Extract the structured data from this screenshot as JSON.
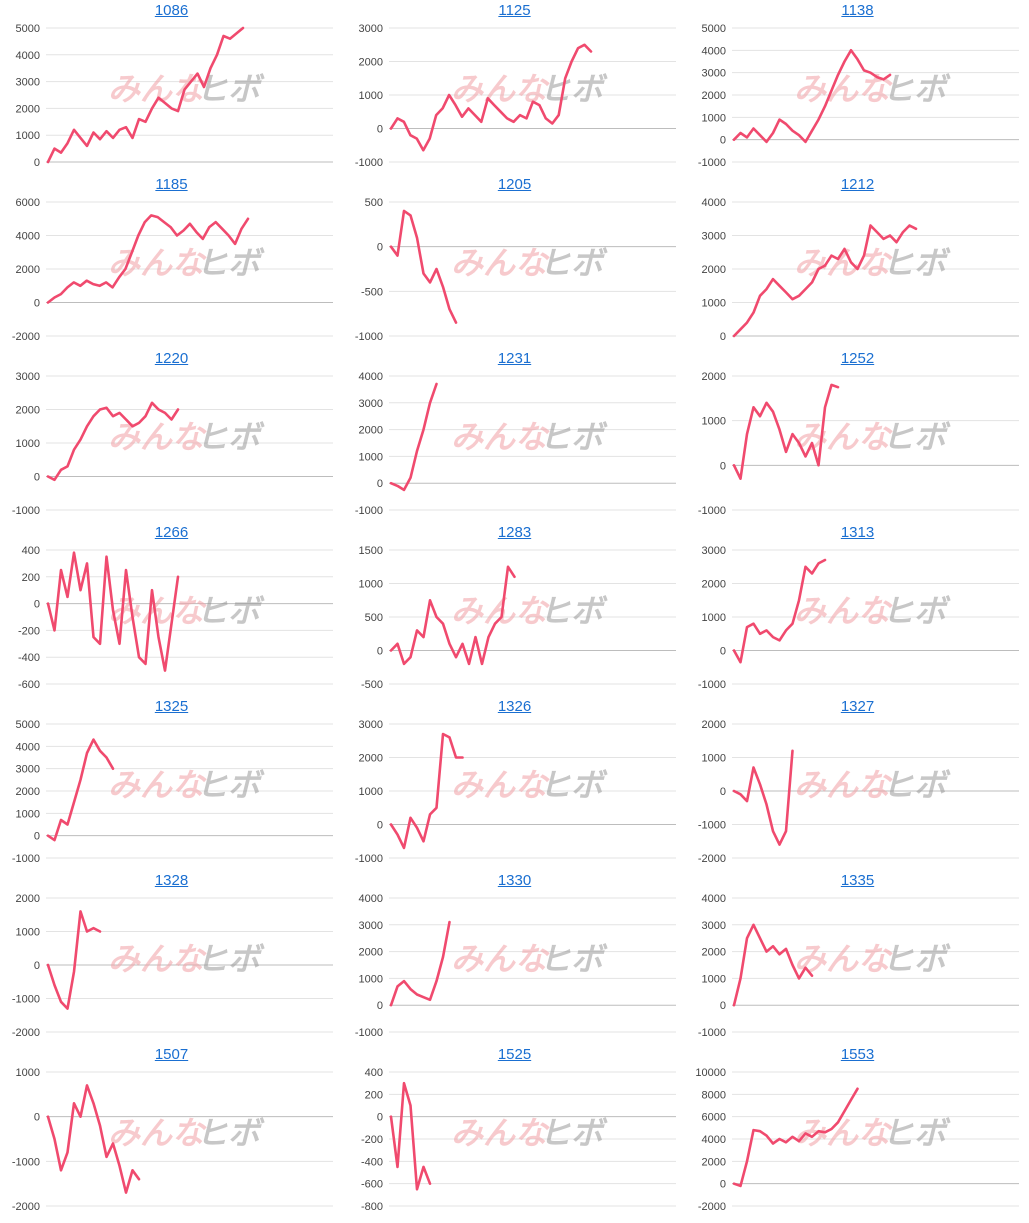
{
  "colors": {
    "line": "#f04a6e",
    "title": "#1a6fd1",
    "grid": "#e3e3e3",
    "zero": "#bdbdbd"
  },
  "watermark": {
    "part1": "みんな",
    "part2": "ヒボ"
  },
  "chart_data": [
    {
      "type": "line",
      "title": "1086",
      "yticks": [
        0,
        1000,
        2000,
        3000,
        4000,
        5000
      ],
      "ylim": [
        0,
        5000
      ],
      "values": [
        0,
        500,
        350,
        700,
        1200,
        900,
        600,
        1100,
        850,
        1150,
        900,
        1200,
        1300,
        900,
        1600,
        1500,
        2000,
        2400,
        2200,
        2000,
        1900,
        2700,
        3000,
        3300,
        2800,
        3500,
        4000,
        4700,
        4600,
        4800,
        5000
      ]
    },
    {
      "type": "line",
      "title": "1125",
      "yticks": [
        -1000,
        0,
        1000,
        2000,
        3000
      ],
      "ylim": [
        -1000,
        3000
      ],
      "values": [
        0,
        300,
        200,
        -200,
        -300,
        -650,
        -300,
        400,
        600,
        1000,
        700,
        350,
        600,
        400,
        200,
        900,
        700,
        500,
        300,
        200,
        400,
        300,
        800,
        700,
        300,
        150,
        400,
        1500,
        2000,
        2400,
        2500,
        2300
      ]
    },
    {
      "type": "line",
      "title": "1138",
      "yticks": [
        -1000,
        0,
        1000,
        2000,
        3000,
        4000,
        5000
      ],
      "ylim": [
        -1000,
        5000
      ],
      "values": [
        0,
        300,
        100,
        500,
        200,
        -100,
        300,
        900,
        700,
        400,
        200,
        -100,
        400,
        900,
        1500,
        2200,
        2900,
        3500,
        4000,
        3600,
        3100,
        3000,
        2800,
        2700,
        2900
      ]
    },
    {
      "type": "line",
      "title": "1185",
      "yticks": [
        -2000,
        0,
        2000,
        4000,
        6000
      ],
      "ylim": [
        -2000,
        6000
      ],
      "values": [
        0,
        300,
        500,
        900,
        1200,
        1000,
        1300,
        1100,
        1000,
        1200,
        900,
        1500,
        2000,
        3000,
        4000,
        4800,
        5200,
        5100,
        4800,
        4500,
        4000,
        4300,
        4700,
        4200,
        3800,
        4500,
        4800,
        4400,
        4000,
        3500,
        4400,
        5000
      ]
    },
    {
      "type": "line",
      "title": "1205",
      "yticks": [
        -1000,
        -500,
        0,
        500
      ],
      "ylim": [
        -1000,
        500
      ],
      "values": [
        0,
        -100,
        400,
        350,
        100,
        -300,
        -400,
        -250,
        -450,
        -700,
        -850
      ]
    },
    {
      "type": "line",
      "title": "1212",
      "yticks": [
        0,
        1000,
        2000,
        3000,
        4000
      ],
      "ylim": [
        0,
        4000
      ],
      "values": [
        0,
        200,
        400,
        700,
        1200,
        1400,
        1700,
        1500,
        1300,
        1100,
        1200,
        1400,
        1600,
        2000,
        2100,
        2400,
        2300,
        2600,
        2200,
        2000,
        2400,
        3300,
        3100,
        2900,
        3000,
        2800,
        3100,
        3300,
        3200
      ]
    },
    {
      "type": "line",
      "title": "1220",
      "yticks": [
        -1000,
        0,
        1000,
        2000,
        3000
      ],
      "ylim": [
        -1000,
        3000
      ],
      "values": [
        0,
        -100,
        200,
        300,
        800,
        1100,
        1500,
        1800,
        2000,
        2050,
        1800,
        1900,
        1700,
        1500,
        1600,
        1800,
        2200,
        2000,
        1900,
        1700,
        2000
      ]
    },
    {
      "type": "line",
      "title": "1231",
      "yticks": [
        -1000,
        0,
        1000,
        2000,
        3000,
        4000
      ],
      "ylim": [
        -1000,
        4000
      ],
      "values": [
        0,
        -100,
        -250,
        200,
        1200,
        2000,
        3000,
        3700
      ]
    },
    {
      "type": "line",
      "title": "1252",
      "yticks": [
        -1000,
        0,
        1000,
        2000
      ],
      "ylim": [
        -1000,
        2000
      ],
      "values": [
        0,
        -300,
        700,
        1300,
        1100,
        1400,
        1200,
        800,
        300,
        700,
        500,
        200,
        500,
        0,
        1300,
        1800,
        1750
      ]
    },
    {
      "type": "line",
      "title": "1266",
      "yticks": [
        -600,
        -400,
        -200,
        0,
        200,
        400
      ],
      "ylim": [
        -600,
        400
      ],
      "values": [
        0,
        -200,
        250,
        50,
        380,
        100,
        300,
        -250,
        -300,
        350,
        -50,
        -300,
        250,
        -100,
        -400,
        -450,
        100,
        -250,
        -500,
        -150,
        200
      ]
    },
    {
      "type": "line",
      "title": "1283",
      "yticks": [
        -500,
        0,
        500,
        1000,
        1500
      ],
      "ylim": [
        -500,
        1500
      ],
      "values": [
        0,
        100,
        -200,
        -100,
        300,
        200,
        750,
        500,
        400,
        100,
        -100,
        100,
        -200,
        200,
        -200,
        200,
        400,
        500,
        1250,
        1100
      ]
    },
    {
      "type": "line",
      "title": "1313",
      "yticks": [
        -1000,
        0,
        1000,
        2000,
        3000
      ],
      "ylim": [
        -1000,
        3000
      ],
      "values": [
        0,
        -350,
        700,
        800,
        500,
        600,
        400,
        300,
        600,
        800,
        1500,
        2500,
        2300,
        2600,
        2700
      ]
    },
    {
      "type": "line",
      "title": "1325",
      "yticks": [
        -1000,
        0,
        1000,
        2000,
        3000,
        4000,
        5000
      ],
      "ylim": [
        -1000,
        5000
      ],
      "values": [
        0,
        -200,
        700,
        500,
        1500,
        2500,
        3700,
        4300,
        3800,
        3500,
        3000
      ]
    },
    {
      "type": "line",
      "title": "1326",
      "yticks": [
        -1000,
        0,
        1000,
        2000,
        3000
      ],
      "ylim": [
        -1000,
        3000
      ],
      "values": [
        0,
        -300,
        -700,
        200,
        -100,
        -500,
        300,
        500,
        2700,
        2600,
        2000,
        2000
      ]
    },
    {
      "type": "line",
      "title": "1327",
      "yticks": [
        -2000,
        -1000,
        0,
        1000,
        2000
      ],
      "ylim": [
        -2000,
        2000
      ],
      "values": [
        0,
        -100,
        -300,
        700,
        200,
        -400,
        -1200,
        -1600,
        -1200,
        1200
      ]
    },
    {
      "type": "line",
      "title": "1328",
      "yticks": [
        -2000,
        -1000,
        0,
        1000,
        2000
      ],
      "ylim": [
        -2000,
        2000
      ],
      "values": [
        0,
        -600,
        -1100,
        -1300,
        -200,
        1600,
        1000,
        1100,
        1000
      ]
    },
    {
      "type": "line",
      "title": "1330",
      "yticks": [
        -1000,
        0,
        1000,
        2000,
        3000,
        4000
      ],
      "ylim": [
        -1000,
        4000
      ],
      "values": [
        0,
        700,
        900,
        600,
        400,
        300,
        200,
        900,
        1800,
        3100
      ]
    },
    {
      "type": "line",
      "title": "1335",
      "yticks": [
        -1000,
        0,
        1000,
        2000,
        3000,
        4000
      ],
      "ylim": [
        -1000,
        4000
      ],
      "values": [
        0,
        1000,
        2500,
        3000,
        2500,
        2000,
        2200,
        1900,
        2100,
        1500,
        1000,
        1400,
        1100
      ]
    },
    {
      "type": "line",
      "title": "1507",
      "yticks": [
        -2000,
        -1000,
        0,
        1000
      ],
      "ylim": [
        -2000,
        1000
      ],
      "values": [
        0,
        -500,
        -1200,
        -800,
        300,
        0,
        700,
        300,
        -200,
        -900,
        -600,
        -1100,
        -1700,
        -1200,
        -1400
      ]
    },
    {
      "type": "line",
      "title": "1525",
      "yticks": [
        -800,
        -600,
        -400,
        -200,
        0,
        200,
        400
      ],
      "ylim": [
        -800,
        400
      ],
      "values": [
        0,
        -450,
        300,
        100,
        -650,
        -450,
        -600
      ]
    },
    {
      "type": "line",
      "title": "1553",
      "yticks": [
        -2000,
        0,
        2000,
        4000,
        6000,
        8000,
        10000
      ],
      "ylim": [
        -2000,
        10000
      ],
      "values": [
        0,
        -200,
        2000,
        4800,
        4700,
        4300,
        3600,
        4000,
        3700,
        4200,
        3800,
        4500,
        4200,
        4700,
        4600,
        4900,
        5500,
        6500,
        7500,
        8500
      ]
    }
  ]
}
